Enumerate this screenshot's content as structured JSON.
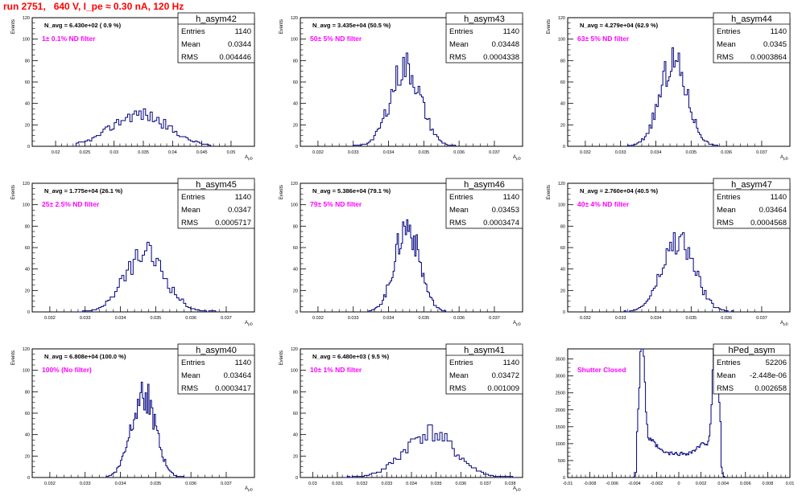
{
  "run_title": "run 2751,   640 V, I_pe ≈ 0.30 nA, 120 Hz",
  "colors": {
    "histogram": "#000080",
    "filter_label": "#ff00ff",
    "title": "#ff0000",
    "axis": "#000000"
  },
  "chart_data": [
    {
      "type": "bar",
      "name": "h_asym42",
      "navg": "N_avg = 6.430e+02 ( 0.9 %)",
      "label": "1± 0.1% ND filter",
      "stats": [
        [
          "Entries",
          "1140"
        ],
        [
          "Mean",
          "0.0344"
        ],
        [
          "RMS",
          "0.004446"
        ]
      ],
      "ylabel": "Events",
      "xlabel": "A_μD",
      "xlim": [
        0.016,
        0.054
      ],
      "ylim": [
        0,
        120
      ],
      "xticks": [
        0.02,
        0.025,
        0.03,
        0.035,
        0.04,
        0.045,
        0.05
      ],
      "xticklabels": [
        "0.02",
        "0.025",
        "0.03",
        "0.035",
        "0.04",
        "0.045",
        "0.05"
      ],
      "yticks": [
        0,
        20,
        40,
        60,
        80,
        100,
        120
      ],
      "shape": {
        "kind": "gauss",
        "mean": 0.0344,
        "sigma": 0.0048,
        "peak": 30,
        "lo": 0.0235,
        "hi": 0.0465,
        "bins": 60,
        "seed": 42
      }
    },
    {
      "type": "bar",
      "name": "h_asym43",
      "navg": "N_avg = 3.435e+04 (50.5 %)",
      "label": "50± 5% ND filter",
      "stats": [
        [
          "Entries",
          "1140"
        ],
        [
          "Mean",
          "0.03448"
        ],
        [
          "RMS",
          "0.0004338"
        ]
      ],
      "ylabel": "Events",
      "xlabel": "A_μD",
      "xlim": [
        0.0315,
        0.0378
      ],
      "ylim": [
        0,
        120
      ],
      "xticks": [
        0.032,
        0.033,
        0.034,
        0.035,
        0.036,
        0.037
      ],
      "xticklabels": [
        "0.032",
        "0.033",
        "0.034",
        "0.035",
        "0.036",
        "0.037"
      ],
      "yticks": [
        0,
        20,
        40,
        60,
        80,
        100,
        120
      ],
      "shape": {
        "kind": "gauss",
        "mean": 0.03448,
        "sigma": 0.00043,
        "peak": 74,
        "lo": 0.033,
        "hi": 0.0359,
        "bins": 60,
        "seed": 43
      }
    },
    {
      "type": "bar",
      "name": "h_asym44",
      "navg": "N_avg = 4.279e+04 (62.9 %)",
      "label": "63± 5% ND filter",
      "stats": [
        [
          "Entries",
          "1140"
        ],
        [
          "Mean",
          "0.0345"
        ],
        [
          "RMS",
          "0.0003864"
        ]
      ],
      "ylabel": "Events",
      "xlabel": "A_μD",
      "xlim": [
        0.0315,
        0.0378
      ],
      "ylim": [
        0,
        120
      ],
      "xticks": [
        0.032,
        0.033,
        0.034,
        0.035,
        0.036,
        0.037
      ],
      "xticklabels": [
        "0.032",
        "0.033",
        "0.034",
        "0.035",
        "0.036",
        "0.037"
      ],
      "yticks": [
        0,
        20,
        40,
        60,
        80,
        100,
        120
      ],
      "shape": {
        "kind": "gauss",
        "mean": 0.0345,
        "sigma": 0.00039,
        "peak": 78,
        "lo": 0.0332,
        "hi": 0.0358,
        "bins": 60,
        "seed": 44
      }
    },
    {
      "type": "bar",
      "name": "h_asym45",
      "navg": "N_avg = 1.775e+04 (26.1 %)",
      "label": "25± 2.5% ND filter",
      "stats": [
        [
          "Entries",
          "1140"
        ],
        [
          "Mean",
          "0.0347"
        ],
        [
          "RMS",
          "0.0005717"
        ]
      ],
      "ylabel": "Events",
      "xlabel": "A_μD",
      "xlim": [
        0.0315,
        0.0378
      ],
      "ylim": [
        0,
        120
      ],
      "xticks": [
        0.032,
        0.033,
        0.034,
        0.035,
        0.036,
        0.037
      ],
      "xticklabels": [
        "0.032",
        "0.033",
        "0.034",
        "0.035",
        "0.036",
        "0.037"
      ],
      "yticks": [
        0,
        20,
        40,
        60,
        80,
        100,
        120
      ],
      "shape": {
        "kind": "gauss",
        "mean": 0.0347,
        "sigma": 0.00057,
        "peak": 54,
        "lo": 0.0328,
        "hi": 0.0367,
        "bins": 60,
        "seed": 45
      }
    },
    {
      "type": "bar",
      "name": "h_asym46",
      "navg": "N_avg = 5.386e+04 (79.1 %)",
      "label": "79± 5% ND filter",
      "stats": [
        [
          "Entries",
          "1140"
        ],
        [
          "Mean",
          "0.03453"
        ],
        [
          "RMS",
          "0.0003474"
        ]
      ],
      "ylabel": "Events",
      "xlabel": "A_μD",
      "xlim": [
        0.0315,
        0.0378
      ],
      "ylim": [
        0,
        120
      ],
      "xticks": [
        0.032,
        0.033,
        0.034,
        0.035,
        0.036,
        0.037
      ],
      "xticklabels": [
        "0.032",
        "0.033",
        "0.034",
        "0.035",
        "0.036",
        "0.037"
      ],
      "yticks": [
        0,
        20,
        40,
        60,
        80,
        100,
        120
      ],
      "shape": {
        "kind": "gauss",
        "mean": 0.03453,
        "sigma": 0.00035,
        "peak": 80,
        "lo": 0.0334,
        "hi": 0.0357,
        "bins": 60,
        "seed": 46
      }
    },
    {
      "type": "bar",
      "name": "h_asym47",
      "navg": "N_avg = 2.760e+04 (40.5 %)",
      "label": "40± 4% ND filter",
      "stats": [
        [
          "Entries",
          "1140"
        ],
        [
          "Mean",
          "0.03464"
        ],
        [
          "RMS",
          "0.0004568"
        ]
      ],
      "ylabel": "Events",
      "xlabel": "A_μD",
      "xlim": [
        0.0315,
        0.0378
      ],
      "ylim": [
        0,
        120
      ],
      "xticks": [
        0.032,
        0.033,
        0.034,
        0.035,
        0.036,
        0.037
      ],
      "xticklabels": [
        "0.032",
        "0.033",
        "0.034",
        "0.035",
        "0.036",
        "0.037"
      ],
      "yticks": [
        0,
        20,
        40,
        60,
        80,
        100,
        120
      ],
      "shape": {
        "kind": "gauss",
        "mean": 0.03464,
        "sigma": 0.00046,
        "peak": 66,
        "lo": 0.0331,
        "hi": 0.0362,
        "bins": 60,
        "seed": 47
      }
    },
    {
      "type": "bar",
      "name": "h_asym40",
      "navg": "N_avg = 6.808e+04 (100.0 %)",
      "label": "100% (No filter)",
      "stats": [
        [
          "Entries",
          "1140"
        ],
        [
          "Mean",
          "0.03464"
        ],
        [
          "RMS",
          "0.0003417"
        ]
      ],
      "ylabel": "Events",
      "xlabel": "A_μD",
      "xlim": [
        0.0315,
        0.0378
      ],
      "ylim": [
        0,
        120
      ],
      "xticks": [
        0.032,
        0.033,
        0.034,
        0.035,
        0.036,
        0.037
      ],
      "xticklabels": [
        "0.032",
        "0.033",
        "0.034",
        "0.035",
        "0.036",
        "0.037"
      ],
      "yticks": [
        0,
        20,
        40,
        60,
        80,
        100,
        120
      ],
      "shape": {
        "kind": "gauss",
        "mean": 0.03464,
        "sigma": 0.00034,
        "peak": 80,
        "lo": 0.0336,
        "hi": 0.0358,
        "bins": 60,
        "seed": 40
      }
    },
    {
      "type": "bar",
      "name": "h_asym41",
      "navg": "N_avg = 6.480e+03 ( 9.5 %)",
      "label": "10± 1% ND filter",
      "stats": [
        [
          "Entries",
          "1140"
        ],
        [
          "Mean",
          "0.03472"
        ],
        [
          "RMS",
          "0.001009"
        ]
      ],
      "ylabel": "Events",
      "xlabel": "A_μD",
      "xlim": [
        0.0295,
        0.0385
      ],
      "ylim": [
        0,
        120
      ],
      "xticks": [
        0.03,
        0.031,
        0.032,
        0.033,
        0.034,
        0.035,
        0.036,
        0.037,
        0.038
      ],
      "xticklabels": [
        "0.03",
        "0.031",
        "0.032",
        "0.033",
        "0.034",
        "0.035",
        "0.036",
        "0.037",
        "0.038"
      ],
      "yticks": [
        0,
        20,
        40,
        60,
        80,
        100,
        120
      ],
      "shape": {
        "kind": "gauss",
        "mean": 0.03472,
        "sigma": 0.00101,
        "peak": 42,
        "lo": 0.0313,
        "hi": 0.0382,
        "bins": 70,
        "seed": 41
      }
    },
    {
      "type": "bar",
      "name": "hPed_asym",
      "navg": "",
      "label": "Shutter Closed",
      "stats": [
        [
          "Entries",
          "52206"
        ],
        [
          "Mean",
          "-2.448e-06"
        ],
        [
          "RMS",
          "0.002658"
        ]
      ],
      "ylabel": "",
      "xlabel": "",
      "xlim": [
        -0.01,
        0.01
      ],
      "ylim": [
        0,
        3800
      ],
      "xticks": [
        -0.01,
        -0.008,
        -0.006,
        -0.004,
        -0.002,
        0,
        0.002,
        0.004,
        0.006,
        0.008,
        0.01
      ],
      "xticklabels": [
        "-0.01",
        "-0.008",
        "-0.006",
        "-0.004",
        "-0.002",
        "0",
        "0.002",
        "0.004",
        "0.006",
        "0.008",
        "0.01"
      ],
      "yticks": [
        0,
        500,
        1000,
        1500,
        2000,
        2500,
        3000,
        3500
      ],
      "shape": {
        "kind": "ped",
        "lo": -0.0042,
        "hi": 0.0042,
        "bins": 84,
        "seed": 99
      }
    }
  ]
}
